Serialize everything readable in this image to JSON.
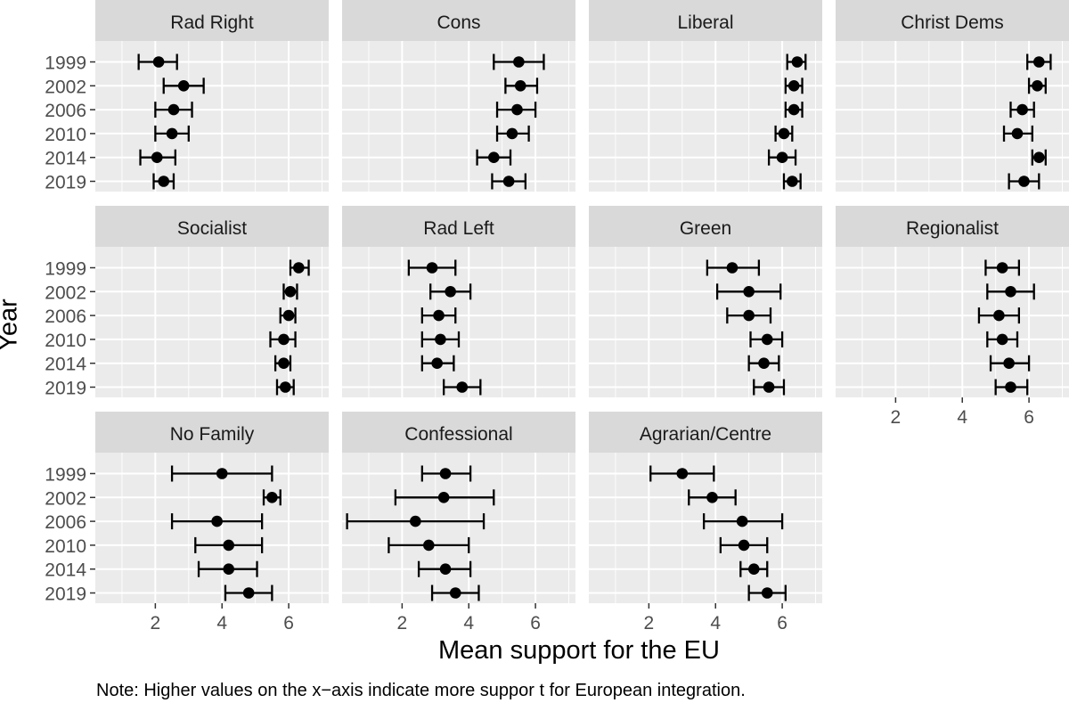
{
  "chart_data": {
    "type": "scatter",
    "subtype": "point-range faceted dot plot with error bars",
    "xlabel": "Mean support for the EU",
    "ylabel": "Year",
    "note": "Note: Higher values on the x−axis indicate more suppor t for European integration.",
    "years": [
      "1999",
      "2002",
      "2006",
      "2010",
      "2014",
      "2019"
    ],
    "xlim": [
      0.2,
      7.2
    ],
    "xticks": [
      2,
      4,
      6
    ],
    "grid": true,
    "panel_background": "#ebebeb",
    "strip_background": "#d9d9d9",
    "grid_color": "#ffffff",
    "point_color": "#000000",
    "facets": [
      {
        "title": "Rad Right",
        "series": [
          {
            "year": "1999",
            "mean": 2.1,
            "low": 1.5,
            "high": 2.65
          },
          {
            "year": "2002",
            "mean": 2.85,
            "low": 2.25,
            "high": 3.45
          },
          {
            "year": "2006",
            "mean": 2.55,
            "low": 2.0,
            "high": 3.1
          },
          {
            "year": "2010",
            "mean": 2.5,
            "low": 2.0,
            "high": 3.0
          },
          {
            "year": "2014",
            "mean": 2.05,
            "low": 1.55,
            "high": 2.6
          },
          {
            "year": "2019",
            "mean": 2.25,
            "low": 1.95,
            "high": 2.55
          }
        ]
      },
      {
        "title": "Cons",
        "series": [
          {
            "year": "1999",
            "mean": 5.5,
            "low": 4.75,
            "high": 6.25
          },
          {
            "year": "2002",
            "mean": 5.55,
            "low": 5.1,
            "high": 6.05
          },
          {
            "year": "2006",
            "mean": 5.45,
            "low": 4.85,
            "high": 6.0
          },
          {
            "year": "2010",
            "mean": 5.3,
            "low": 4.85,
            "high": 5.8
          },
          {
            "year": "2014",
            "mean": 4.75,
            "low": 4.25,
            "high": 5.25
          },
          {
            "year": "2019",
            "mean": 5.2,
            "low": 4.7,
            "high": 5.7
          }
        ]
      },
      {
        "title": "Liberal",
        "series": [
          {
            "year": "1999",
            "mean": 6.45,
            "low": 6.15,
            "high": 6.7
          },
          {
            "year": "2002",
            "mean": 6.35,
            "low": 6.1,
            "high": 6.6
          },
          {
            "year": "2006",
            "mean": 6.35,
            "low": 6.1,
            "high": 6.6
          },
          {
            "year": "2010",
            "mean": 6.05,
            "low": 5.8,
            "high": 6.3
          },
          {
            "year": "2014",
            "mean": 6.0,
            "low": 5.6,
            "high": 6.4
          },
          {
            "year": "2019",
            "mean": 6.3,
            "low": 6.05,
            "high": 6.55
          }
        ]
      },
      {
        "title": "Christ Dems",
        "series": [
          {
            "year": "1999",
            "mean": 6.3,
            "low": 5.95,
            "high": 6.65
          },
          {
            "year": "2002",
            "mean": 6.25,
            "low": 6.0,
            "high": 6.5
          },
          {
            "year": "2006",
            "mean": 5.8,
            "low": 5.45,
            "high": 6.15
          },
          {
            "year": "2010",
            "mean": 5.65,
            "low": 5.25,
            "high": 6.1
          },
          {
            "year": "2014",
            "mean": 6.3,
            "low": 6.1,
            "high": 6.5
          },
          {
            "year": "2019",
            "mean": 5.85,
            "low": 5.4,
            "high": 6.3
          }
        ]
      },
      {
        "title": "Socialist",
        "series": [
          {
            "year": "1999",
            "mean": 6.3,
            "low": 6.05,
            "high": 6.6
          },
          {
            "year": "2002",
            "mean": 6.05,
            "low": 5.85,
            "high": 6.25
          },
          {
            "year": "2006",
            "mean": 6.0,
            "low": 5.75,
            "high": 6.2
          },
          {
            "year": "2010",
            "mean": 5.85,
            "low": 5.45,
            "high": 6.2
          },
          {
            "year": "2014",
            "mean": 5.85,
            "low": 5.6,
            "high": 6.05
          },
          {
            "year": "2019",
            "mean": 5.9,
            "low": 5.65,
            "high": 6.15
          }
        ]
      },
      {
        "title": "Rad Left",
        "series": [
          {
            "year": "1999",
            "mean": 2.9,
            "low": 2.2,
            "high": 3.6
          },
          {
            "year": "2002",
            "mean": 3.45,
            "low": 2.85,
            "high": 4.05
          },
          {
            "year": "2006",
            "mean": 3.1,
            "low": 2.6,
            "high": 3.6
          },
          {
            "year": "2010",
            "mean": 3.15,
            "low": 2.6,
            "high": 3.7
          },
          {
            "year": "2014",
            "mean": 3.05,
            "low": 2.6,
            "high": 3.55
          },
          {
            "year": "2019",
            "mean": 3.8,
            "low": 3.25,
            "high": 4.35
          }
        ]
      },
      {
        "title": "Green",
        "series": [
          {
            "year": "1999",
            "mean": 4.5,
            "low": 3.75,
            "high": 5.3
          },
          {
            "year": "2002",
            "mean": 5.0,
            "low": 4.05,
            "high": 5.95
          },
          {
            "year": "2006",
            "mean": 5.0,
            "low": 4.35,
            "high": 5.65
          },
          {
            "year": "2010",
            "mean": 5.55,
            "low": 5.05,
            "high": 6.0
          },
          {
            "year": "2014",
            "mean": 5.45,
            "low": 5.0,
            "high": 5.9
          },
          {
            "year": "2019",
            "mean": 5.6,
            "low": 5.15,
            "high": 6.05
          }
        ]
      },
      {
        "title": "Regionalist",
        "series": [
          {
            "year": "1999",
            "mean": 5.2,
            "low": 4.7,
            "high": 5.7
          },
          {
            "year": "2002",
            "mean": 5.45,
            "low": 4.75,
            "high": 6.15
          },
          {
            "year": "2006",
            "mean": 5.1,
            "low": 4.5,
            "high": 5.7
          },
          {
            "year": "2010",
            "mean": 5.2,
            "low": 4.75,
            "high": 5.65
          },
          {
            "year": "2014",
            "mean": 5.4,
            "low": 4.85,
            "high": 6.0
          },
          {
            "year": "2019",
            "mean": 5.45,
            "low": 5.0,
            "high": 5.95
          }
        ]
      },
      {
        "title": "No Family",
        "series": [
          {
            "year": "1999",
            "mean": 4.0,
            "low": 2.5,
            "high": 5.5
          },
          {
            "year": "2002",
            "mean": 5.5,
            "low": 5.25,
            "high": 5.75
          },
          {
            "year": "2006",
            "mean": 3.85,
            "low": 2.5,
            "high": 5.2
          },
          {
            "year": "2010",
            "mean": 4.2,
            "low": 3.2,
            "high": 5.2
          },
          {
            "year": "2014",
            "mean": 4.2,
            "low": 3.3,
            "high": 5.05
          },
          {
            "year": "2019",
            "mean": 4.8,
            "low": 4.1,
            "high": 5.5
          }
        ]
      },
      {
        "title": "Confessional",
        "series": [
          {
            "year": "1999",
            "mean": 3.3,
            "low": 2.6,
            "high": 4.05
          },
          {
            "year": "2002",
            "mean": 3.25,
            "low": 1.8,
            "high": 4.75
          },
          {
            "year": "2006",
            "mean": 2.4,
            "low": 0.35,
            "high": 4.45
          },
          {
            "year": "2010",
            "mean": 2.8,
            "low": 1.6,
            "high": 4.0
          },
          {
            "year": "2014",
            "mean": 3.3,
            "low": 2.5,
            "high": 4.05
          },
          {
            "year": "2019",
            "mean": 3.6,
            "low": 2.9,
            "high": 4.3
          }
        ]
      },
      {
        "title": "Agrarian/Centre",
        "series": [
          {
            "year": "1999",
            "mean": 3.0,
            "low": 2.05,
            "high": 3.95
          },
          {
            "year": "2002",
            "mean": 3.9,
            "low": 3.2,
            "high": 4.6
          },
          {
            "year": "2006",
            "mean": 4.8,
            "low": 3.65,
            "high": 6.0
          },
          {
            "year": "2010",
            "mean": 4.85,
            "low": 4.15,
            "high": 5.55
          },
          {
            "year": "2014",
            "mean": 5.15,
            "low": 4.75,
            "high": 5.55
          },
          {
            "year": "2019",
            "mean": 5.55,
            "low": 5.0,
            "high": 6.1
          }
        ]
      }
    ]
  }
}
